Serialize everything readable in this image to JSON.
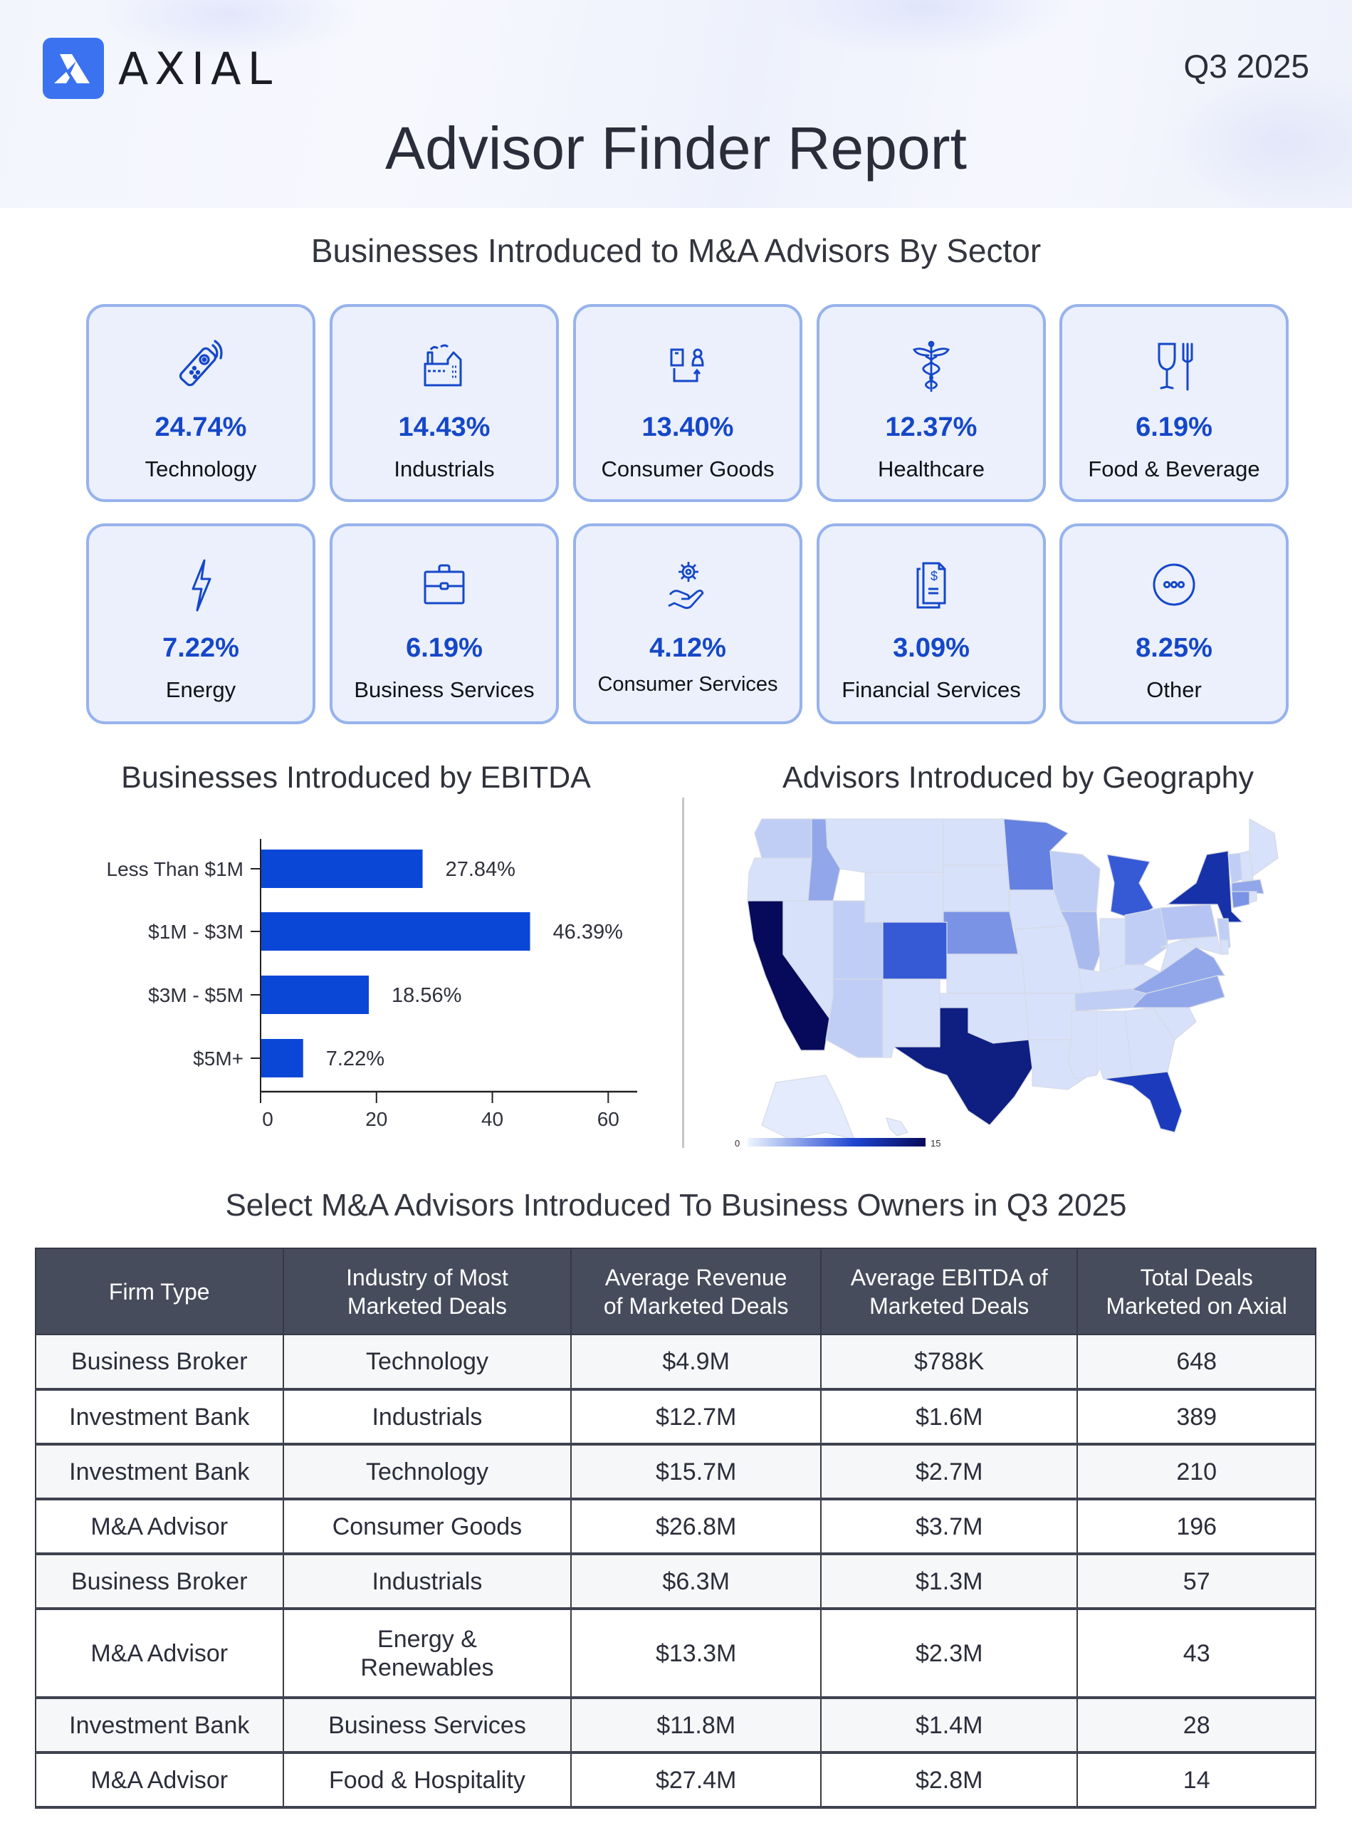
{
  "header": {
    "brand": "AXIAL",
    "quarter": "Q3 2025",
    "title": "Advisor Finder Report"
  },
  "sectors": {
    "title": "Businesses Introduced to M&A Advisors By Sector",
    "items": [
      {
        "icon": "remote-control-icon",
        "pct": "24.74%",
        "label": "Technology"
      },
      {
        "icon": "factory-icon",
        "pct": "14.43%",
        "label": "Industrials"
      },
      {
        "icon": "package-person-icon",
        "pct": "13.40%",
        "label": "Consumer Goods"
      },
      {
        "icon": "caduceus-icon",
        "pct": "12.37%",
        "label": "Healthcare"
      },
      {
        "icon": "glass-fork-icon",
        "pct": "6.19%",
        "label": "Food & Beverage"
      },
      {
        "icon": "lightning-icon",
        "pct": "7.22%",
        "label": "Energy"
      },
      {
        "icon": "briefcase-icon",
        "pct": "6.19%",
        "label": "Business Services"
      },
      {
        "icon": "gear-hand-icon",
        "pct": "4.12%",
        "label": "Consumer Services"
      },
      {
        "icon": "dollar-document-icon",
        "pct": "3.09%",
        "label": "Financial Services"
      },
      {
        "icon": "more-dots-icon",
        "pct": "8.25%",
        "label": "Other"
      }
    ]
  },
  "chart_data": [
    {
      "type": "bar",
      "orientation": "horizontal",
      "title": "Businesses Introduced by EBITDA",
      "categories": [
        "Less Than $1M",
        "$1M - $3M",
        "$3M - $5M",
        "$5M+"
      ],
      "values": [
        27.84,
        46.39,
        18.56,
        7.22
      ],
      "value_labels": [
        "27.84%",
        "46.39%",
        "18.56%",
        "7.22%"
      ],
      "xlabel": "",
      "ylabel": "",
      "xlim": [
        0,
        65
      ],
      "xticks": [
        0,
        20,
        40,
        60
      ],
      "bar_color": "#0b47d6",
      "grid": false
    },
    {
      "type": "heatmap",
      "subtype": "choropleth",
      "title": "Advisors Introduced by Geography",
      "scale_min": 0,
      "scale_max": 15,
      "scale_colors": [
        "#eef5ff",
        "#1f45d0",
        "#070a5a"
      ],
      "legend_position": "bottom-left",
      "states": {
        "CA": 15,
        "TX": 13,
        "NY": 11,
        "FL": 10,
        "MI": 8,
        "CO": 8,
        "MN": 6,
        "NE": 5,
        "ID": 4,
        "VA": 4,
        "NC": 4,
        "CT": 5,
        "MA": 4,
        "IL": 3,
        "WA": 2,
        "WI": 2,
        "UT": 2,
        "AZ": 2,
        "PA": 2.5,
        "OH": 2,
        "TN": 2,
        "NJ": 2,
        "VT": 2,
        "OR": 1,
        "NV": 1,
        "MT": 1,
        "WY": 1,
        "ND": 1,
        "SD": 1,
        "NM": 1,
        "KS": 1,
        "OK": 1,
        "IA": 1,
        "MO": 1,
        "AR": 1,
        "LA": 1,
        "MS": 1,
        "AL": 1,
        "GA": 1,
        "SC": 1,
        "KY": 1,
        "IN": 1,
        "WV": 1,
        "MD": 1,
        "DE": 1,
        "NH": 1,
        "ME": 1,
        "RI": 1,
        "AK": 0.5,
        "HI": 0.5
      }
    }
  ],
  "table": {
    "title": "Select M&A Advisors Introduced To Business Owners in Q3 2025",
    "headers": [
      "Firm Type",
      "Industry of Most Marketed Deals",
      "Average Revenue of Marketed Deals",
      "Average EBITDA of Marketed Deals",
      "Total Deals Marketed on Axial"
    ],
    "rows": [
      [
        "Business Broker",
        "Technology",
        "$4.9M",
        "$788K",
        "648"
      ],
      [
        "Investment Bank",
        "Industrials",
        "$12.7M",
        "$1.6M",
        "389"
      ],
      [
        "Investment Bank",
        "Technology",
        "$15.7M",
        "$2.7M",
        "210"
      ],
      [
        "M&A Advisor",
        "Consumer Goods",
        "$26.8M",
        "$3.7M",
        "196"
      ],
      [
        "Business Broker",
        "Industrials",
        "$6.3M",
        "$1.3M",
        "57"
      ],
      [
        "M&A Advisor",
        "Energy & Renewables",
        "$13.3M",
        "$2.3M",
        "43"
      ],
      [
        "Investment Bank",
        "Business Services",
        "$11.8M",
        "$1.4M",
        "28"
      ],
      [
        "M&A Advisor",
        "Food & Hospitality",
        "$27.4M",
        "$2.8M",
        "14"
      ]
    ]
  }
}
